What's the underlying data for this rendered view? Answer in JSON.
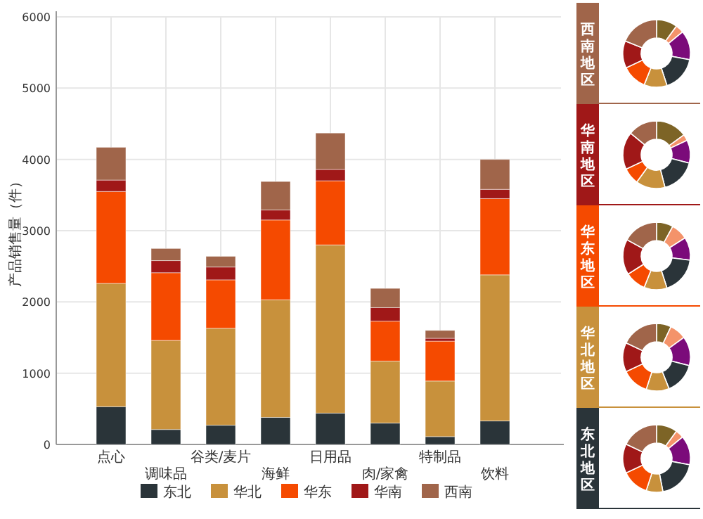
{
  "chart_data": [
    {
      "type": "bar",
      "stacked": true,
      "ylabel": "产品销售量（件）",
      "categories": [
        "点心",
        "调味品",
        "谷类/麦片",
        "海鲜",
        "日用品",
        "肉/家禽",
        "特制品",
        "饮料"
      ],
      "series": [
        {
          "name": "东北",
          "color": "#2a3439",
          "values": [
            530,
            210,
            270,
            380,
            440,
            300,
            110,
            330
          ]
        },
        {
          "name": "华北",
          "color": "#c8913c",
          "values": [
            1730,
            1250,
            1360,
            1650,
            2360,
            870,
            780,
            2050
          ]
        },
        {
          "name": "华东",
          "color": "#f54a00",
          "values": [
            1290,
            950,
            680,
            1120,
            900,
            560,
            560,
            1070
          ]
        },
        {
          "name": "华南",
          "color": "#a01818",
          "values": [
            160,
            170,
            180,
            140,
            160,
            190,
            40,
            130
          ]
        },
        {
          "name": "西南",
          "color": "#a0654a",
          "values": [
            460,
            170,
            150,
            400,
            510,
            270,
            110,
            420
          ]
        }
      ],
      "ylim": [
        0,
        6000
      ],
      "yticks": [
        0,
        1000,
        2000,
        3000,
        4000,
        5000,
        6000
      ],
      "grid": true,
      "legend": "bottom"
    },
    {
      "type": "donut",
      "title": "西南地区",
      "categories": [
        null,
        null,
        null,
        null,
        null,
        null,
        null,
        null
      ],
      "values": [
        10,
        4,
        14,
        17,
        11,
        12,
        13,
        19
      ],
      "colors": [
        "#7d6426",
        "#f4936a",
        "#7b0b7a",
        "#2a3439",
        "#c8913c",
        "#f54a00",
        "#a01818",
        "#a0654a"
      ]
    },
    {
      "type": "donut",
      "title": "华南地区",
      "categories": [
        null,
        null,
        null,
        null,
        null,
        null,
        null,
        null
      ],
      "values": [
        15,
        3,
        11,
        17,
        14,
        8,
        18,
        14
      ],
      "colors": [
        "#7d6426",
        "#f4936a",
        "#7b0b7a",
        "#2a3439",
        "#c8913c",
        "#f54a00",
        "#a01818",
        "#a0654a"
      ]
    },
    {
      "type": "donut",
      "title": "华东地区",
      "categories": [
        null,
        null,
        null,
        null,
        null,
        null,
        null,
        null
      ],
      "values": [
        8,
        8,
        11,
        18,
        11,
        10,
        17,
        17
      ],
      "colors": [
        "#7d6426",
        "#f4936a",
        "#7b0b7a",
        "#2a3439",
        "#c8913c",
        "#f54a00",
        "#a01818",
        "#a0654a"
      ]
    },
    {
      "type": "donut",
      "title": "华北地区",
      "categories": [
        null,
        null,
        null,
        null,
        null,
        null,
        null,
        null
      ],
      "values": [
        7,
        8,
        14,
        15,
        11,
        13,
        14,
        18
      ],
      "colors": [
        "#7d6426",
        "#f4936a",
        "#7b0b7a",
        "#2a3439",
        "#c8913c",
        "#f54a00",
        "#a01818",
        "#a0654a"
      ]
    },
    {
      "type": "donut",
      "title": "东北地区",
      "categories": [
        null,
        null,
        null,
        null,
        null,
        null,
        null,
        null
      ],
      "values": [
        10,
        4,
        14,
        19,
        8,
        13,
        14,
        18
      ],
      "colors": [
        "#7d6426",
        "#f4936a",
        "#7b0b7a",
        "#2a3439",
        "#c8913c",
        "#f54a00",
        "#a01818",
        "#a0654a"
      ]
    }
  ]
}
